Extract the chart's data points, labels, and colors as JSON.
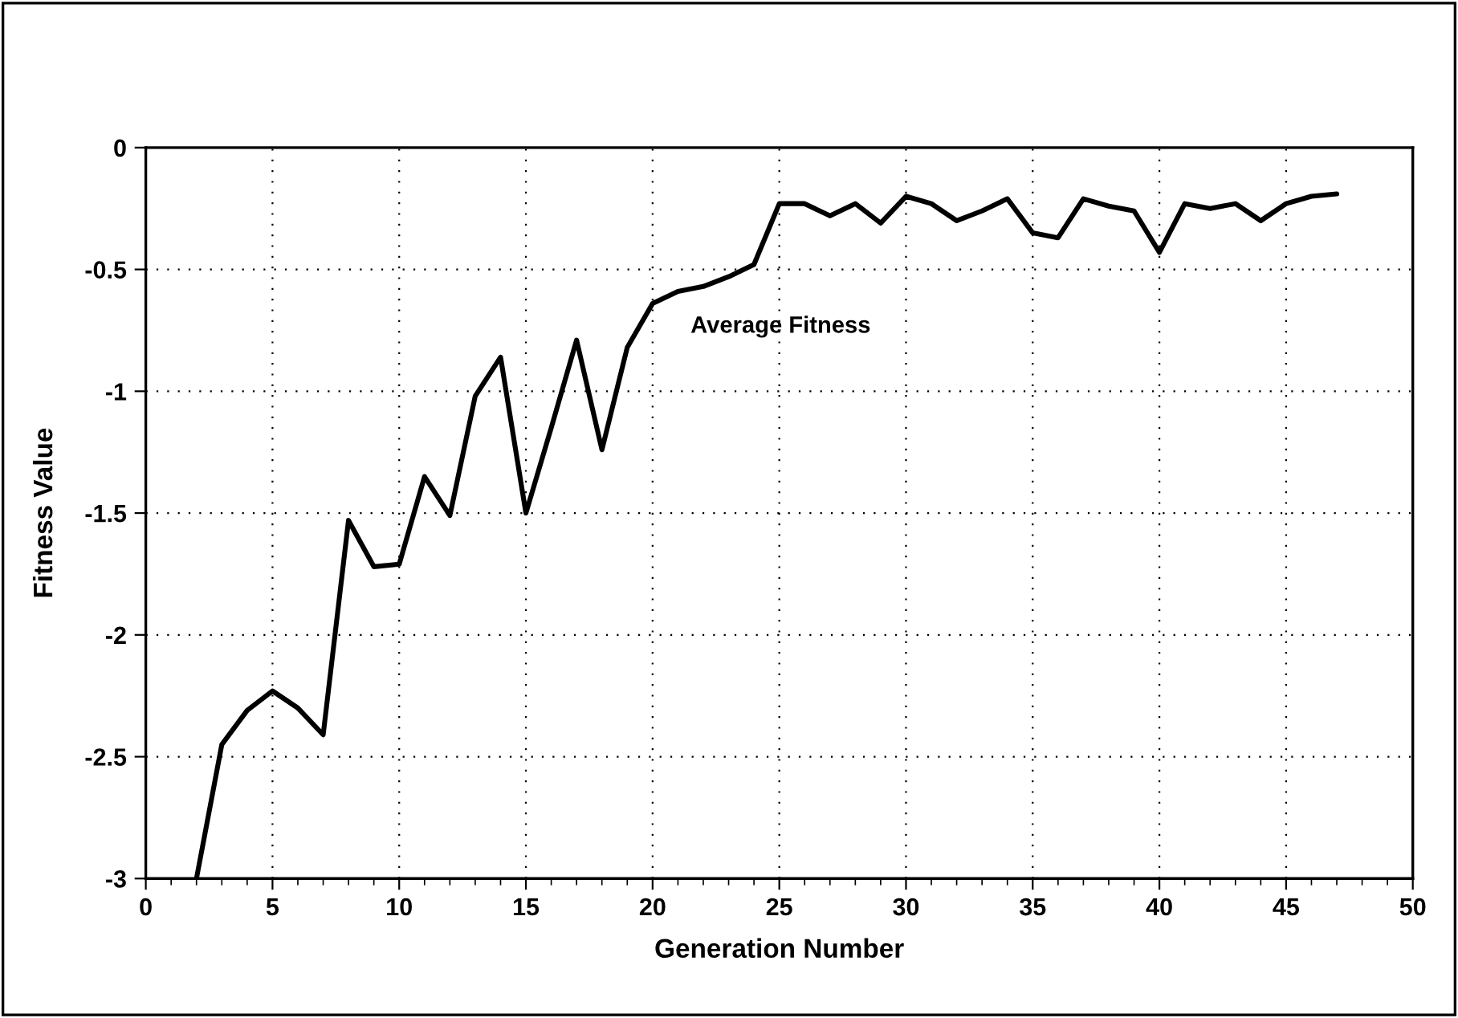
{
  "chart_data": {
    "type": "line",
    "xlabel": "Generation Number",
    "ylabel": "Fitness Value",
    "x": [
      2,
      3,
      4,
      5,
      6,
      7,
      8,
      9,
      10,
      11,
      12,
      13,
      14,
      15,
      16,
      17,
      18,
      19,
      20,
      21,
      22,
      23,
      24,
      25,
      26,
      27,
      28,
      29,
      30,
      31,
      32,
      33,
      34,
      35,
      36,
      37,
      38,
      39,
      40,
      41,
      42,
      43,
      44,
      45,
      46,
      47
    ],
    "series": [
      {
        "name": "Average Fitness",
        "color": "#000000",
        "values": [
          -3.0,
          -2.45,
          -2.31,
          -2.23,
          -2.3,
          -2.41,
          -1.53,
          -1.72,
          -1.71,
          -1.35,
          -1.51,
          -1.02,
          -0.86,
          -1.5,
          -1.15,
          -0.79,
          -1.24,
          -0.82,
          -0.64,
          -0.59,
          -0.57,
          -0.53,
          -0.48,
          -0.23,
          -0.23,
          -0.28,
          -0.23,
          -0.31,
          -0.2,
          -0.23,
          -0.3,
          -0.26,
          -0.21,
          -0.35,
          -0.37,
          -0.21,
          -0.24,
          -0.26,
          -0.43,
          -0.23,
          -0.25,
          -0.23,
          -0.3,
          -0.23,
          -0.2,
          -0.19
        ]
      }
    ],
    "xlim": [
      0,
      50
    ],
    "xticks": [
      0,
      5,
      10,
      15,
      20,
      25,
      30,
      35,
      40,
      45,
      50
    ],
    "ylim": [
      -3,
      0
    ],
    "yticks": [
      -3,
      -2.5,
      -2,
      -1.5,
      -1,
      -0.5,
      0
    ],
    "grid": true,
    "legend": false,
    "marker": "none",
    "line_style": "solid"
  }
}
